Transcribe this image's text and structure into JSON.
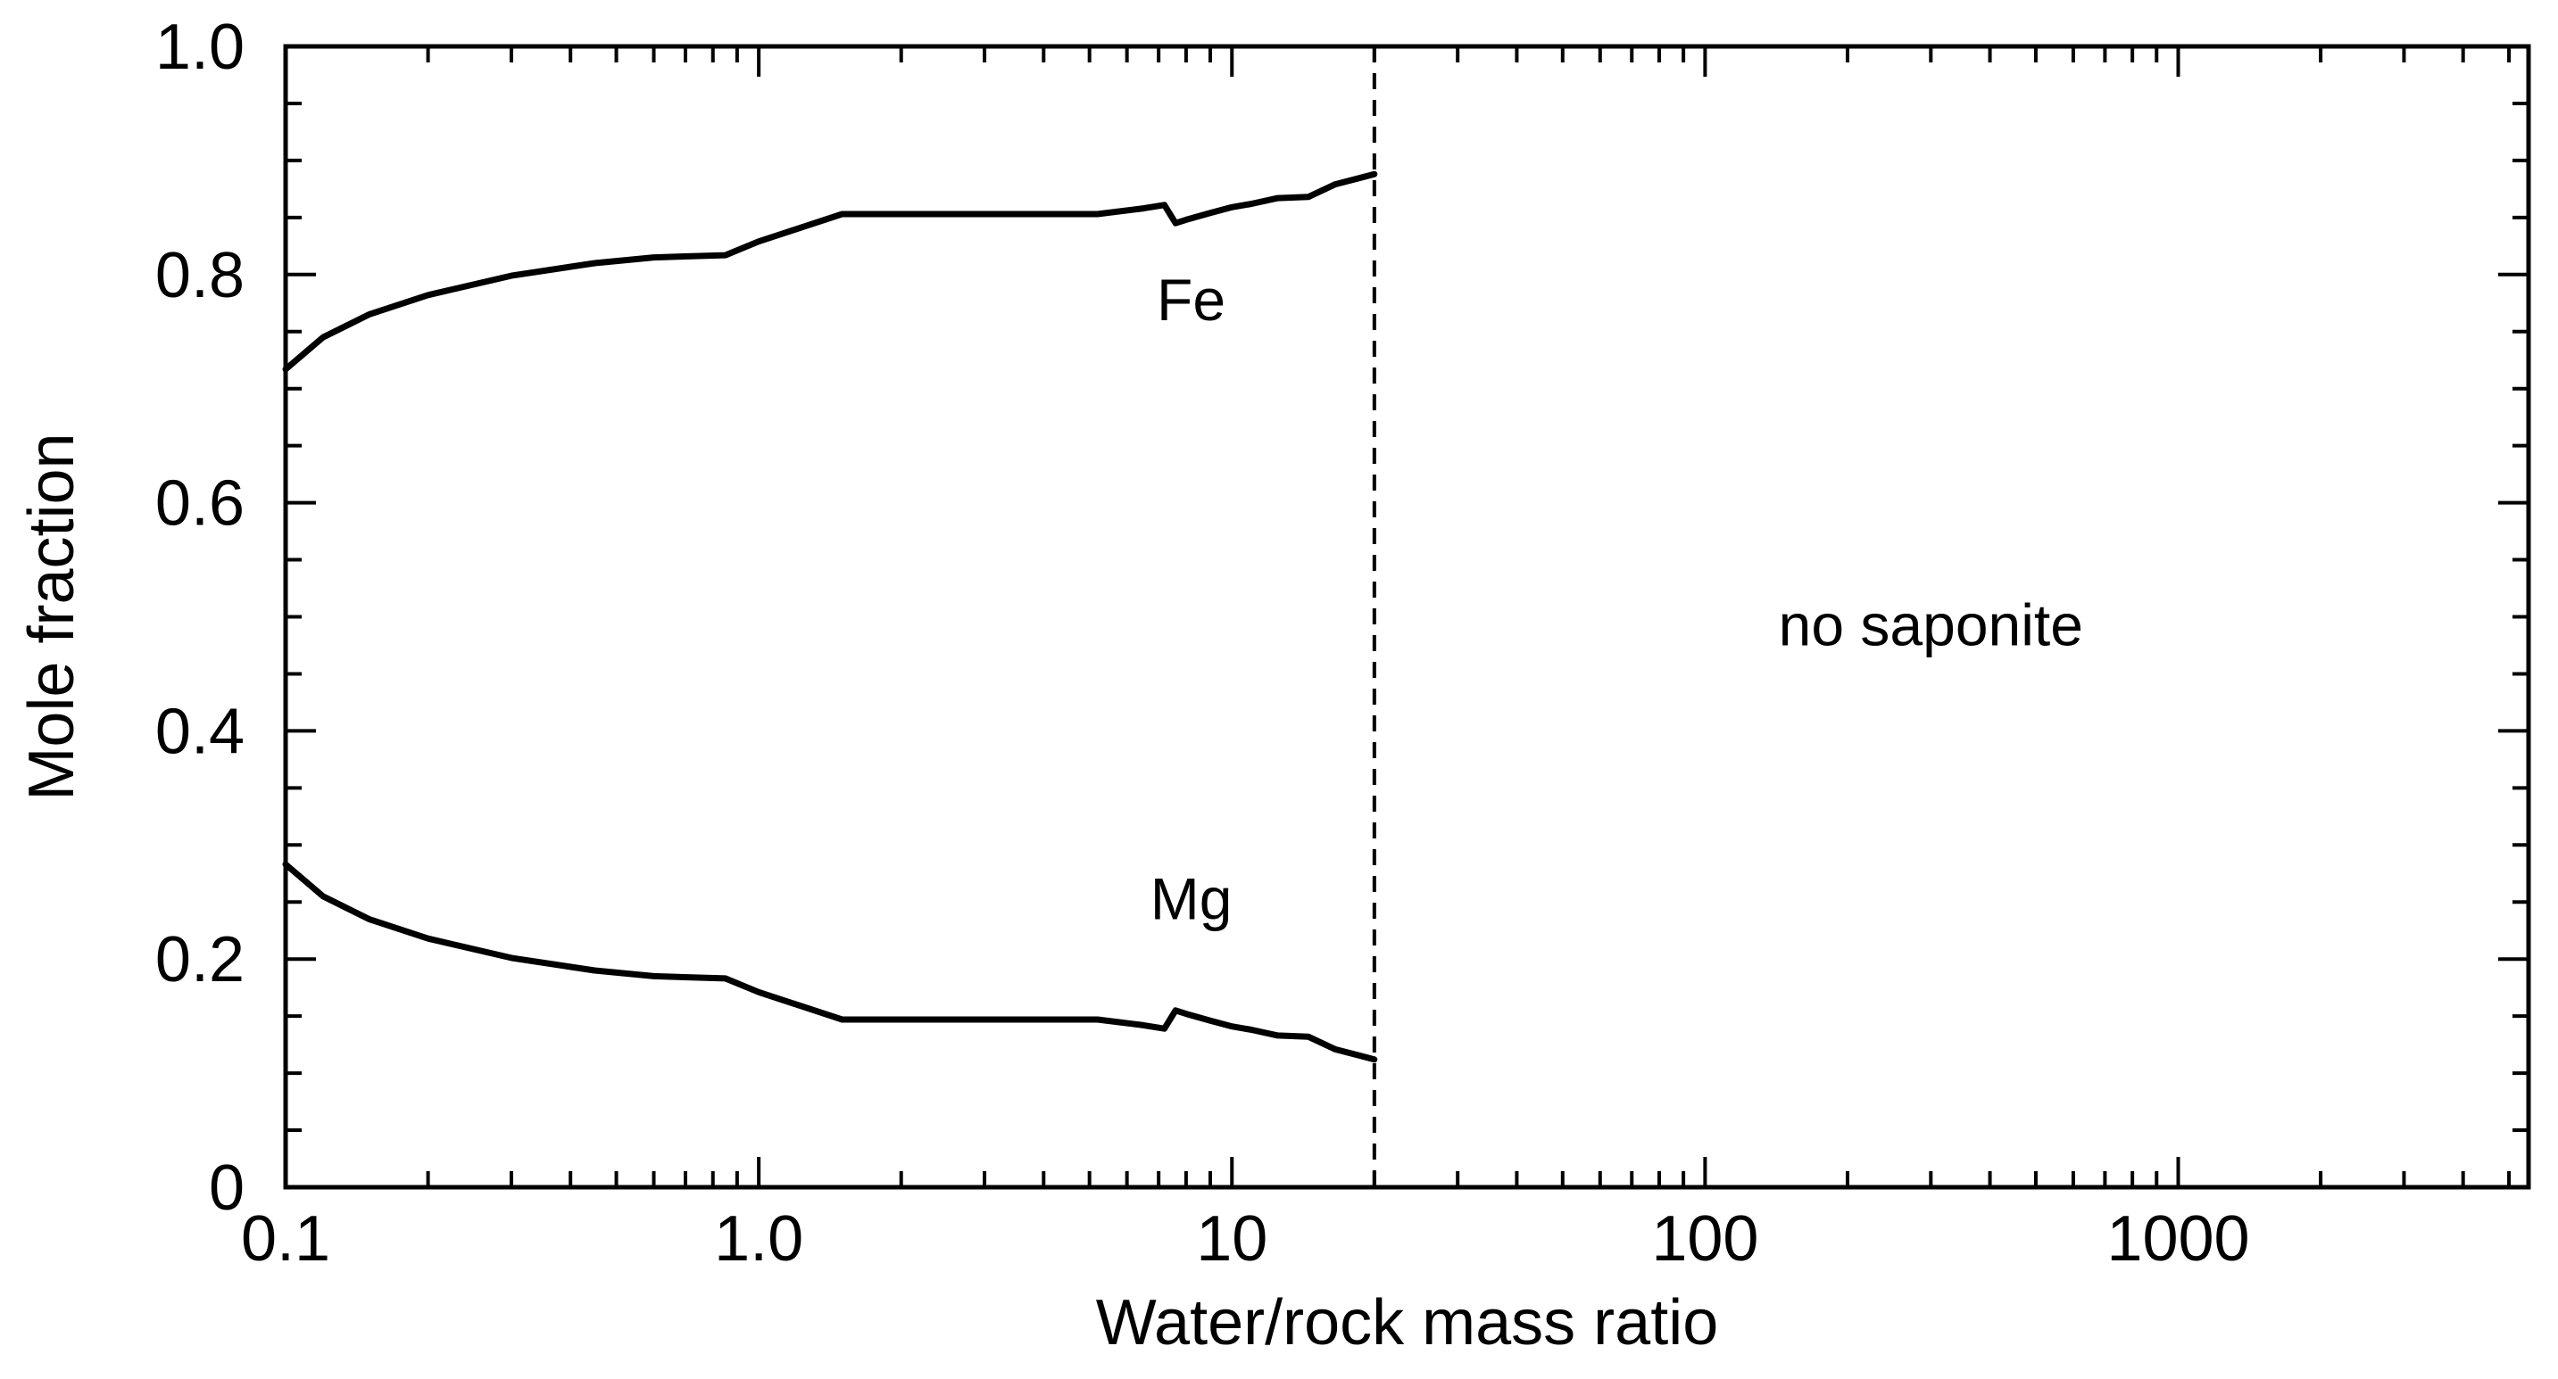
{
  "chart_data": {
    "type": "line",
    "title": "",
    "xlabel": "Water/rock mass ratio",
    "ylabel": "Mole fraction",
    "xscale": "log",
    "xlim": [
      0.1,
      5500
    ],
    "ylim": [
      0,
      1.0
    ],
    "grid": false,
    "x_tick_values": [
      0.1,
      1.0,
      10,
      100,
      1000
    ],
    "x_tick_labels": [
      "0.1",
      "1.0",
      "10",
      "100",
      "1000"
    ],
    "y_tick_values": [
      0,
      0.2,
      0.4,
      0.6,
      0.8,
      1.0
    ],
    "y_tick_labels": [
      "0",
      "0.2",
      "0.4",
      "0.6",
      "0.8",
      "1.0"
    ],
    "series": [
      {
        "name": "Fe",
        "x": [
          0.1,
          0.12,
          0.15,
          0.2,
          0.3,
          0.45,
          0.6,
          0.85,
          1.0,
          1.5,
          3.0,
          5.2,
          6.5,
          7.2,
          7.6,
          8.0,
          9.0,
          10.0,
          11.0,
          12.5,
          14.5,
          16.5,
          20.0
        ],
        "values": [
          0.717,
          0.745,
          0.765,
          0.782,
          0.799,
          0.81,
          0.815,
          0.817,
          0.829,
          0.853,
          0.853,
          0.853,
          0.858,
          0.861,
          0.845,
          0.848,
          0.854,
          0.859,
          0.862,
          0.867,
          0.868,
          0.879,
          0.888
        ]
      },
      {
        "name": "Mg",
        "x": [
          0.1,
          0.12,
          0.15,
          0.2,
          0.3,
          0.45,
          0.6,
          0.85,
          1.0,
          1.5,
          3.0,
          5.2,
          6.5,
          7.2,
          7.6,
          8.0,
          9.0,
          10.0,
          11.0,
          12.5,
          14.5,
          16.5,
          20.0
        ],
        "values": [
          0.283,
          0.255,
          0.235,
          0.218,
          0.201,
          0.19,
          0.185,
          0.183,
          0.171,
          0.147,
          0.147,
          0.147,
          0.142,
          0.139,
          0.155,
          0.152,
          0.146,
          0.141,
          0.138,
          0.133,
          0.132,
          0.121,
          0.112
        ]
      }
    ],
    "boundary_x": 20,
    "annotations": [
      {
        "id": "fe",
        "text": "Fe",
        "x": 8.2,
        "y": 0.76
      },
      {
        "id": "mg",
        "text": "Mg",
        "x": 8.2,
        "y": 0.235
      },
      {
        "id": "nosap",
        "text": "no saponite",
        "x": 300,
        "y": 0.475
      }
    ]
  }
}
